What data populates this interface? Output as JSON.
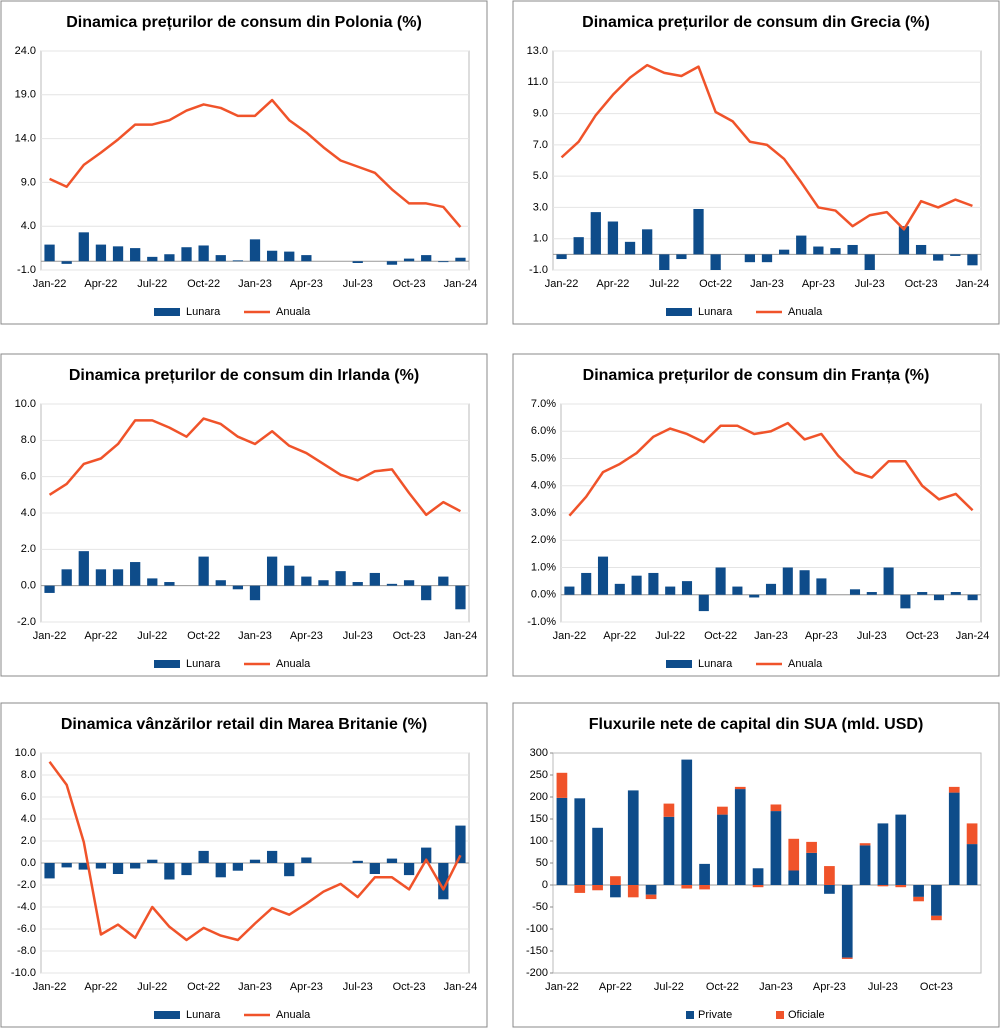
{
  "chart_data": [
    {
      "type": "combo",
      "title": "Dinamica prețurilor de consum din Polonia (%)",
      "categories": [
        "Jan-22",
        null,
        null,
        "Apr-22",
        null,
        null,
        "Jul-22",
        null,
        null,
        "Oct-22",
        null,
        null,
        "Jan-23",
        null,
        null,
        "Apr-23",
        null,
        null,
        "Jul-23",
        null,
        null,
        "Oct-23",
        null,
        null,
        "Jan-24"
      ],
      "series": [
        {
          "name": "Lunara",
          "mark": "bar",
          "color": "#0e4c8a",
          "values": [
            1.9,
            -0.3,
            3.3,
            1.9,
            1.7,
            1.5,
            0.5,
            0.8,
            1.6,
            1.8,
            0.7,
            0.1,
            2.5,
            1.2,
            1.1,
            0.7,
            0.0,
            0.0,
            -0.2,
            0.0,
            -0.4,
            0.3,
            0.7,
            -0.1,
            0.4
          ]
        },
        {
          "name": "Anuala",
          "mark": "line",
          "color": "#f0532a",
          "values": [
            9.4,
            8.5,
            11.0,
            12.4,
            13.9,
            15.6,
            15.6,
            16.1,
            17.2,
            17.9,
            17.5,
            16.6,
            16.6,
            18.4,
            16.1,
            14.7,
            13.0,
            11.5,
            10.8,
            10.1,
            8.2,
            6.6,
            6.6,
            6.2,
            3.9
          ]
        }
      ],
      "ylim": [
        -1,
        24
      ],
      "yticks": [
        {
          "value": -1,
          "label": "-1.0"
        },
        {
          "value": 4,
          "label": "4.0"
        },
        {
          "value": 9,
          "label": "9.0"
        },
        {
          "value": 14,
          "label": "14.0"
        },
        {
          "value": 19,
          "label": "19.0"
        },
        {
          "value": 24,
          "label": "24.0"
        }
      ],
      "grid": true
    },
    {
      "type": "combo",
      "title": "Dinamica prețurilor de consum din Grecia (%)",
      "categories": [
        "Jan-22",
        null,
        null,
        "Apr-22",
        null,
        null,
        "Jul-22",
        null,
        null,
        "Oct-22",
        null,
        null,
        "Jan-23",
        null,
        null,
        "Apr-23",
        null,
        null,
        "Jul-23",
        null,
        null,
        "Oct-23",
        null,
        null,
        "Jan-24"
      ],
      "series": [
        {
          "name": "Lunara",
          "mark": "bar",
          "color": "#0e4c8a",
          "values": [
            -0.3,
            1.1,
            2.7,
            2.1,
            0.8,
            1.6,
            -1.0,
            -0.3,
            2.9,
            -1.0,
            0.0,
            -0.5,
            -0.5,
            0.3,
            1.2,
            0.5,
            0.4,
            0.6,
            -1.0,
            0.0,
            1.8,
            0.6,
            -0.4,
            -0.1,
            -0.7
          ]
        },
        {
          "name": "Anuala",
          "mark": "line",
          "color": "#f0532a",
          "values": [
            6.2,
            7.2,
            8.9,
            10.2,
            11.3,
            12.1,
            11.6,
            11.4,
            12.0,
            9.1,
            8.5,
            7.2,
            7.0,
            6.1,
            4.6,
            3.0,
            2.8,
            1.8,
            2.5,
            2.7,
            1.6,
            3.4,
            3.0,
            3.5,
            3.1
          ]
        }
      ],
      "ylim": [
        -1,
        13
      ],
      "yticks": [
        {
          "value": -1,
          "label": "-1.0"
        },
        {
          "value": 1,
          "label": "1.0"
        },
        {
          "value": 3,
          "label": "3.0"
        },
        {
          "value": 5,
          "label": "5.0"
        },
        {
          "value": 7,
          "label": "7.0"
        },
        {
          "value": 9,
          "label": "9.0"
        },
        {
          "value": 11,
          "label": "11.0"
        },
        {
          "value": 13,
          "label": "13.0"
        }
      ],
      "grid": true
    },
    {
      "type": "combo",
      "title": "Dinamica prețurilor de consum din Irlanda (%)",
      "categories": [
        "Jan-22",
        null,
        null,
        "Apr-22",
        null,
        null,
        "Jul-22",
        null,
        null,
        "Oct-22",
        null,
        null,
        "Jan-23",
        null,
        null,
        "Apr-23",
        null,
        null,
        "Jul-23",
        null,
        null,
        "Oct-23",
        null,
        null,
        "Jan-24"
      ],
      "series": [
        {
          "name": "Lunara",
          "mark": "bar",
          "color": "#0e4c8a",
          "values": [
            -0.4,
            0.9,
            1.9,
            0.9,
            0.9,
            1.3,
            0.4,
            0.2,
            0.0,
            1.6,
            0.3,
            -0.2,
            -0.8,
            1.6,
            1.1,
            0.5,
            0.3,
            0.8,
            0.2,
            0.7,
            0.1,
            0.3,
            -0.8,
            0.5,
            -1.3
          ]
        },
        {
          "name": "Anuala",
          "mark": "line",
          "color": "#f0532a",
          "values": [
            5.0,
            5.6,
            6.7,
            7.0,
            7.8,
            9.1,
            9.1,
            8.7,
            8.2,
            9.2,
            8.9,
            8.2,
            7.8,
            8.5,
            7.7,
            7.3,
            6.7,
            6.1,
            5.8,
            6.3,
            6.4,
            5.1,
            3.9,
            4.6,
            4.1
          ]
        }
      ],
      "ylim": [
        -2,
        10
      ],
      "yticks": [
        {
          "value": -2,
          "label": "-2.0"
        },
        {
          "value": 0,
          "label": "0.0"
        },
        {
          "value": 2,
          "label": "2.0"
        },
        {
          "value": 4,
          "label": "4.0"
        },
        {
          "value": 6,
          "label": "6.0"
        },
        {
          "value": 8,
          "label": "8.0"
        },
        {
          "value": 10,
          "label": "10.0"
        }
      ],
      "grid": true
    },
    {
      "type": "combo",
      "title": "Dinamica prețurilor de consum din Franța (%)",
      "categories": [
        "Jan-22",
        null,
        null,
        "Apr-22",
        null,
        null,
        "Jul-22",
        null,
        null,
        "Oct-22",
        null,
        null,
        "Jan-23",
        null,
        null,
        "Apr-23",
        null,
        null,
        "Jul-23",
        null,
        null,
        "Oct-23",
        null,
        null,
        "Jan-24"
      ],
      "series": [
        {
          "name": "Lunara",
          "mark": "bar",
          "color": "#0e4c8a",
          "values": [
            0.3,
            0.8,
            1.4,
            0.4,
            0.7,
            0.8,
            0.3,
            0.5,
            -0.6,
            1.0,
            0.3,
            -0.1,
            0.4,
            1.0,
            0.9,
            0.6,
            0.0,
            0.2,
            0.1,
            1.0,
            -0.5,
            0.1,
            -0.2,
            0.1,
            -0.2
          ]
        },
        {
          "name": "Anuala",
          "mark": "line",
          "color": "#f0532a",
          "values": [
            2.9,
            3.6,
            4.5,
            4.8,
            5.2,
            5.8,
            6.1,
            5.9,
            5.6,
            6.2,
            6.2,
            5.9,
            6.0,
            6.3,
            5.7,
            5.9,
            5.1,
            4.5,
            4.3,
            4.9,
            4.9,
            4.0,
            3.5,
            3.7,
            3.1
          ]
        }
      ],
      "ylim": [
        -1,
        7
      ],
      "yticks": [
        {
          "value": -1,
          "label": "-1.0%"
        },
        {
          "value": 0,
          "label": "0.0%"
        },
        {
          "value": 1,
          "label": "1.0%"
        },
        {
          "value": 2,
          "label": "2.0%"
        },
        {
          "value": 3,
          "label": "3.0%"
        },
        {
          "value": 4,
          "label": "4.0%"
        },
        {
          "value": 5,
          "label": "5.0%"
        },
        {
          "value": 6,
          "label": "6.0%"
        },
        {
          "value": 7,
          "label": "7.0%"
        }
      ],
      "grid": true
    },
    {
      "type": "combo",
      "title": "Dinamica vânzărilor retail din Marea Britanie (%)",
      "categories": [
        "Jan-22",
        null,
        null,
        "Apr-22",
        null,
        null,
        "Jul-22",
        null,
        null,
        "Oct-22",
        null,
        null,
        "Jan-23",
        null,
        null,
        "Apr-23",
        null,
        null,
        "Jul-23",
        null,
        null,
        "Oct-23",
        null,
        null,
        "Jan-24"
      ],
      "series": [
        {
          "name": "Lunara",
          "mark": "bar",
          "color": "#0e4c8a",
          "values": [
            -1.4,
            -0.4,
            -0.6,
            -0.5,
            -1.0,
            -0.5,
            0.3,
            -1.5,
            -1.1,
            1.1,
            -1.3,
            -0.7,
            0.3,
            1.1,
            -1.2,
            0.5,
            0.0,
            0.0,
            0.2,
            -1.0,
            0.4,
            -1.1,
            1.4,
            -3.3,
            3.4
          ]
        },
        {
          "name": "Anuala",
          "mark": "line",
          "color": "#f0532a",
          "values": [
            9.2,
            7.1,
            1.9,
            -6.5,
            -5.6,
            -6.8,
            -4.0,
            -5.8,
            -7.0,
            -5.9,
            -6.6,
            -7.0,
            -5.5,
            -4.1,
            -4.7,
            -3.7,
            -2.6,
            -1.9,
            -3.1,
            -1.3,
            -1.3,
            -2.4,
            0.3,
            -2.4,
            0.7
          ]
        }
      ],
      "ylim": [
        -10,
        10
      ],
      "yticks": [
        {
          "value": -10,
          "label": "-10.0"
        },
        {
          "value": -8,
          "label": "-8.0"
        },
        {
          "value": -6,
          "label": "-6.0"
        },
        {
          "value": -4,
          "label": "-4.0"
        },
        {
          "value": -2,
          "label": "-2.0"
        },
        {
          "value": 0,
          "label": "0.0"
        },
        {
          "value": 2,
          "label": "2.0"
        },
        {
          "value": 4,
          "label": "4.0"
        },
        {
          "value": 6,
          "label": "6.0"
        },
        {
          "value": 8,
          "label": "8.0"
        },
        {
          "value": 10,
          "label": "10.0"
        }
      ],
      "grid": true
    },
    {
      "type": "stackedbar",
      "title": "Fluxurile nete de capital din SUA (mld. USD)",
      "categories": [
        "Jan-22",
        null,
        null,
        "Apr-22",
        null,
        null,
        "Jul-22",
        null,
        null,
        "Oct-22",
        null,
        null,
        "Jan-23",
        null,
        null,
        "Apr-23",
        null,
        null,
        "Jul-23",
        null,
        null,
        "Oct-23",
        null,
        null
      ],
      "series": [
        {
          "name": "Private",
          "mark": "bar",
          "color": "#0e4c8a",
          "values": [
            198,
            197,
            130,
            -28,
            215,
            -22,
            155,
            285,
            48,
            160,
            218,
            38,
            168,
            33,
            73,
            -20,
            -165,
            90,
            140,
            160,
            -27,
            -70,
            210,
            93
          ]
        },
        {
          "name": "Oficiale",
          "mark": "bar",
          "color": "#f0532a",
          "values": [
            57,
            -18,
            -12,
            20,
            -28,
            -10,
            30,
            -8,
            -10,
            18,
            5,
            -5,
            15,
            72,
            25,
            43,
            -3,
            5,
            -3,
            -5,
            -10,
            -10,
            13,
            47
          ]
        }
      ],
      "ylim": [
        -200,
        300
      ],
      "yticks": [
        -200,
        -150,
        -100,
        -50,
        0,
        50,
        100,
        150,
        200,
        250,
        300
      ],
      "grid": false
    }
  ]
}
